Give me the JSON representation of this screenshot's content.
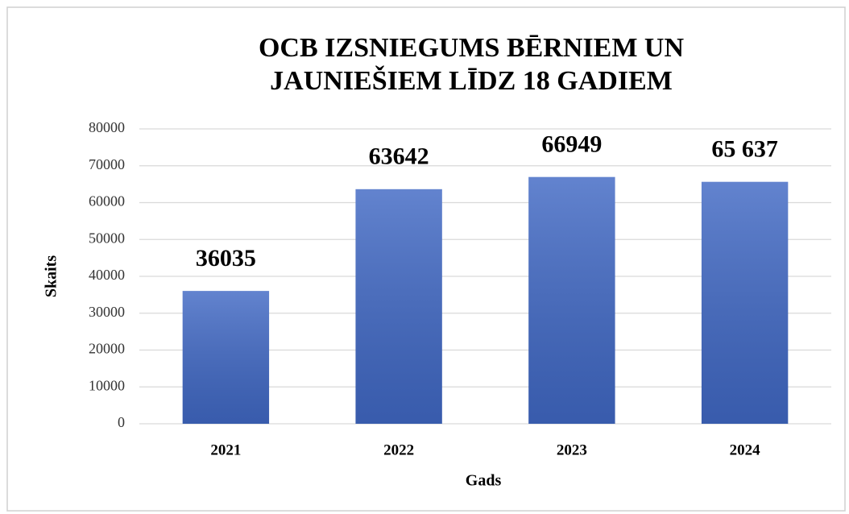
{
  "chart_data": {
    "type": "bar",
    "title": [
      "OCB IZSNIEGUMS  BĒRNIEM UN",
      "JAUNIEŠIEM LĪDZ 18 GADIEM"
    ],
    "x_label": "Gads",
    "y_label": "Skaits",
    "categories": [
      "2021",
      "2022",
      "2023",
      "2024"
    ],
    "values": [
      36035,
      63642,
      66949,
      65637
    ],
    "value_labels": [
      "36035",
      "63642",
      "66949",
      "65 637"
    ],
    "color": "#4068c4",
    "ylim": [
      0,
      80000
    ],
    "yticks": [
      0,
      10000,
      20000,
      30000,
      40000,
      50000,
      60000,
      70000,
      80000
    ],
    "grid": true
  }
}
